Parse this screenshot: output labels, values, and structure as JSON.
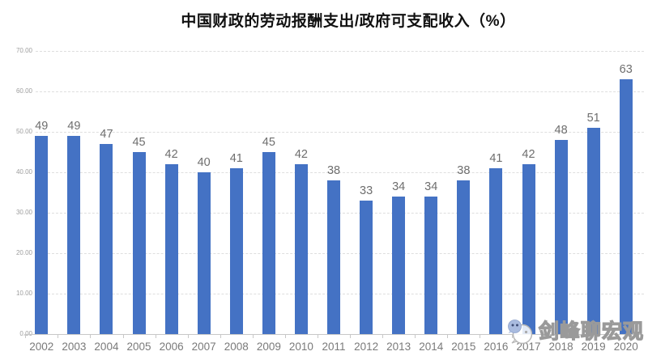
{
  "title": "中国财政的劳动报酬支出/政府可支配收入（%）",
  "chart_data": {
    "type": "bar",
    "title": "中国财政的劳动报酬支出/政府可支配收入（%）",
    "categories": [
      "2002",
      "2003",
      "2004",
      "2005",
      "2006",
      "2007",
      "2008",
      "2009",
      "2010",
      "2011",
      "2012",
      "2013",
      "2014",
      "2015",
      "2016",
      "2017",
      "2018",
      "2019",
      "2020"
    ],
    "values": [
      49,
      49,
      47,
      45,
      42,
      40,
      41,
      45,
      42,
      38,
      33,
      34,
      34,
      38,
      41,
      42,
      48,
      51,
      63
    ],
    "xlabel": "",
    "ylabel": "",
    "ylim": [
      0,
      70
    ],
    "y_ticks": [
      "0.00",
      "10.00",
      "20.00",
      "30.00",
      "40.00",
      "50.00",
      "60.00",
      "70.00"
    ],
    "y_tick_values": [
      0,
      10,
      20,
      30,
      40,
      50,
      60,
      70
    ],
    "grid": true,
    "legend": false,
    "data_labels": true,
    "bar_color": "#4472C4",
    "value_label_color": "#6e6e6e",
    "axis_label_color": "#9e9e9e"
  },
  "watermark": {
    "icon": "wechat-icon",
    "text": "剑峰聊宏观"
  }
}
